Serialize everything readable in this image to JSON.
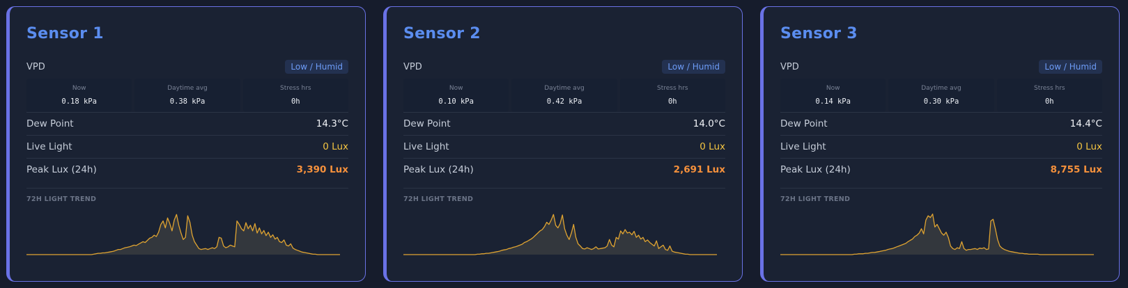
{
  "colors": {
    "accent": "#6a72e6",
    "title": "#5b8def",
    "live_light": "#f4c542",
    "peak_lux": "#f6913c",
    "trend_line": "#e0a431"
  },
  "sensors": [
    {
      "name": "Sensor 1",
      "vpd_label": "VPD",
      "vpd_status": "Low / Humid",
      "stats": [
        {
          "label": "Now",
          "value": "0.18 kPa"
        },
        {
          "label": "Daytime avg",
          "value": "0.38 kPa"
        },
        {
          "label": "Stress hrs",
          "value": "0h"
        }
      ],
      "dew_point_label": "Dew Point",
      "dew_point": "14.3°C",
      "live_light_label": "Live Light",
      "live_light": "0 Lux",
      "peak_lux_label": "Peak Lux (24h)",
      "peak_lux": "3,390 Lux",
      "trend_label": "72H LIGHT TREND"
    },
    {
      "name": "Sensor 2",
      "vpd_label": "VPD",
      "vpd_status": "Low / Humid",
      "stats": [
        {
          "label": "Now",
          "value": "0.10 kPa"
        },
        {
          "label": "Daytime avg",
          "value": "0.42 kPa"
        },
        {
          "label": "Stress hrs",
          "value": "0h"
        }
      ],
      "dew_point_label": "Dew Point",
      "dew_point": "14.0°C",
      "live_light_label": "Live Light",
      "live_light": "0 Lux",
      "peak_lux_label": "Peak Lux (24h)",
      "peak_lux": "2,691 Lux",
      "trend_label": "72H LIGHT TREND"
    },
    {
      "name": "Sensor 3",
      "vpd_label": "VPD",
      "vpd_status": "Low / Humid",
      "stats": [
        {
          "label": "Now",
          "value": "0.14 kPa"
        },
        {
          "label": "Daytime avg",
          "value": "0.30 kPa"
        },
        {
          "label": "Stress hrs",
          "value": "0h"
        }
      ],
      "dew_point_label": "Dew Point",
      "dew_point": "14.4°C",
      "live_light_label": "Live Light",
      "live_light": "0 Lux",
      "peak_lux_label": "Peak Lux (24h)",
      "peak_lux": "8,755 Lux",
      "trend_label": "72H LIGHT TREND"
    }
  ],
  "chart_data": [
    {
      "type": "area",
      "title": "72H LIGHT TREND",
      "series": [
        {
          "values": [
            0,
            0,
            0,
            0,
            0,
            0,
            0,
            0,
            0,
            0,
            0,
            0,
            0,
            0,
            0,
            0,
            0,
            0,
            0,
            0,
            0,
            0,
            0,
            0,
            0,
            0,
            0,
            0,
            0,
            0,
            1,
            2,
            3,
            3,
            4,
            4,
            5,
            6,
            7,
            8,
            10,
            12,
            12,
            14,
            16,
            17,
            18,
            20,
            22,
            21,
            24,
            27,
            30,
            28,
            33,
            38,
            40,
            45,
            42,
            52,
            70,
            78,
            62,
            85,
            72,
            55,
            80,
            93,
            68,
            50,
            35,
            40,
            90,
            75,
            45,
            30,
            22,
            14,
            12,
            13,
            14,
            12,
            14,
            16,
            14,
            18,
            40,
            38,
            20,
            16,
            18,
            22,
            20,
            18,
            78,
            70,
            60,
            55,
            74,
            60,
            68,
            55,
            72,
            50,
            62,
            48,
            56,
            44,
            52,
            40,
            46,
            36,
            40,
            30,
            28,
            34,
            22,
            20,
            25,
            15,
            12,
            10,
            8,
            6,
            5,
            4,
            3,
            2,
            1,
            1,
            0,
            0,
            0,
            0,
            0,
            0,
            0,
            0,
            0,
            0,
            0
          ]
        }
      ]
    },
    {
      "type": "area",
      "title": "72H LIGHT TREND",
      "series": [
        {
          "values": [
            0,
            0,
            0,
            0,
            0,
            0,
            0,
            0,
            0,
            0,
            0,
            0,
            0,
            0,
            0,
            0,
            0,
            0,
            0,
            0,
            0,
            0,
            0,
            0,
            0,
            0,
            0,
            0,
            0,
            0,
            0,
            0,
            0,
            1,
            1,
            2,
            2,
            3,
            3,
            4,
            5,
            6,
            7,
            8,
            10,
            11,
            12,
            14,
            15,
            17,
            18,
            20,
            22,
            24,
            28,
            30,
            33,
            36,
            40,
            45,
            50,
            55,
            58,
            65,
            75,
            70,
            80,
            93,
            68,
            62,
            72,
            92,
            60,
            45,
            35,
            50,
            70,
            40,
            25,
            20,
            14,
            13,
            16,
            14,
            12,
            14,
            18,
            13,
            14,
            15,
            16,
            20,
            35,
            22,
            18,
            40,
            36,
            55,
            48,
            58,
            50,
            52,
            46,
            54,
            40,
            45,
            36,
            40,
            30,
            34,
            28,
            24,
            20,
            32,
            14,
            18,
            22,
            12,
            10,
            20,
            8,
            6,
            5,
            4,
            3,
            2,
            1,
            1,
            0,
            0,
            0,
            0,
            0,
            0,
            0,
            0,
            0,
            0,
            0,
            0,
            0
          ]
        }
      ]
    },
    {
      "type": "area",
      "title": "72H LIGHT TREND",
      "series": [
        {
          "values": [
            0,
            0,
            0,
            0,
            0,
            0,
            0,
            0,
            0,
            0,
            0,
            0,
            0,
            0,
            0,
            0,
            0,
            0,
            0,
            0,
            0,
            0,
            0,
            0,
            0,
            0,
            0,
            0,
            0,
            0,
            0,
            0,
            0,
            1,
            1,
            2,
            2,
            2,
            3,
            3,
            4,
            5,
            5,
            6,
            7,
            8,
            9,
            10,
            12,
            13,
            14,
            16,
            18,
            20,
            22,
            24,
            26,
            30,
            33,
            36,
            42,
            45,
            50,
            60,
            48,
            80,
            90,
            86,
            94,
            64,
            70,
            60,
            50,
            45,
            52,
            40,
            20,
            14,
            12,
            16,
            14,
            30,
            14,
            10,
            12,
            12,
            13,
            14,
            12,
            15,
            14,
            16,
            12,
            13,
            78,
            82,
            60,
            35,
            20,
            15,
            12,
            10,
            8,
            7,
            6,
            5,
            4,
            3,
            3,
            2,
            2,
            1,
            1,
            1,
            1,
            1,
            0,
            0,
            0,
            0,
            0,
            0,
            0,
            0,
            0,
            0,
            0,
            0,
            0,
            0,
            0,
            0,
            0,
            0,
            0,
            0,
            0,
            0,
            0,
            0,
            0
          ]
        }
      ]
    }
  ]
}
